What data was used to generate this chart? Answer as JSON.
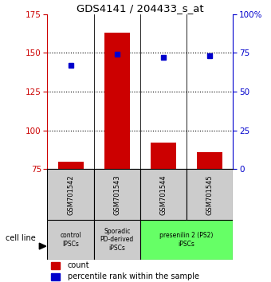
{
  "title": "GDS4141 / 204433_s_at",
  "samples": [
    "GSM701542",
    "GSM701543",
    "GSM701544",
    "GSM701545"
  ],
  "count_values": [
    80,
    163,
    92,
    86
  ],
  "percentile_values": [
    67,
    74,
    72,
    73
  ],
  "ymin": 75,
  "ymax": 175,
  "yticks_left": [
    75,
    100,
    125,
    150,
    175
  ],
  "yticks_right": [
    0,
    25,
    50,
    75,
    100
  ],
  "count_color": "#cc0000",
  "percentile_color": "#0000cc",
  "bar_width": 0.55,
  "left_axis_color": "#cc0000",
  "right_axis_color": "#0000cc",
  "legend_count": "count",
  "legend_pct": "percentile rank within the sample",
  "cell_line_label": "cell line",
  "group_data": [
    {
      "label": "control\nIPSCs",
      "color": "#cccccc",
      "xmin": -0.5,
      "xmax": 0.5
    },
    {
      "label": "Sporadic\nPD-derived\niPSCs",
      "color": "#cccccc",
      "xmin": 0.5,
      "xmax": 1.5
    },
    {
      "label": "presenilin 2 (PS2)\niPSCs",
      "color": "#66ff66",
      "xmin": 1.5,
      "xmax": 3.5
    }
  ]
}
